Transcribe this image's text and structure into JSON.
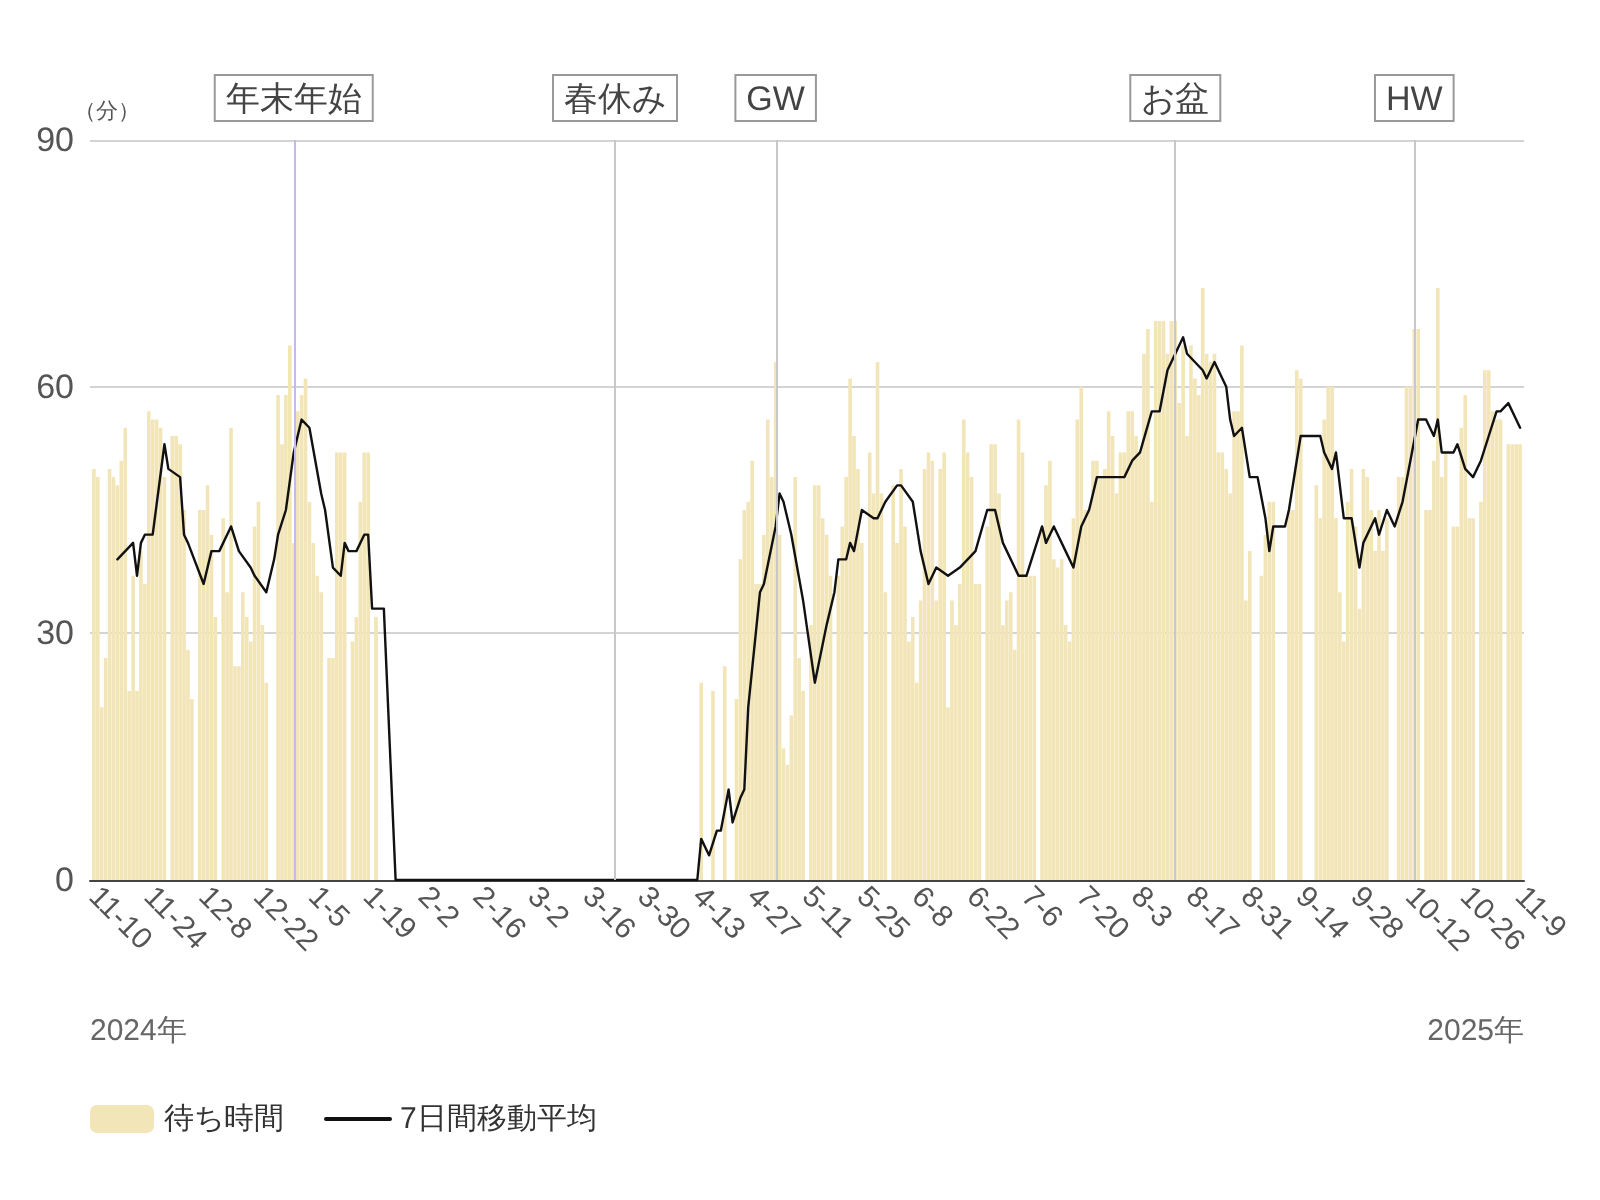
{
  "chart_data": {
    "type": "bar",
    "ylabel": "（分）",
    "annotations": [
      "2024年",
      "2025年"
    ],
    "xlim": [
      "2024-11-09",
      "2025-11-10"
    ],
    "xticks": [
      {
        "value": "2024-11-10",
        "label": "11-10"
      },
      {
        "value": "2024-11-24",
        "label": "11-24"
      },
      {
        "value": "2024-12-08",
        "label": "12-8"
      },
      {
        "value": "2024-12-22",
        "label": "12-22"
      },
      {
        "value": "2025-01-05",
        "label": "1-5"
      },
      {
        "value": "2025-01-19",
        "label": "1-19"
      },
      {
        "value": "2025-02-02",
        "label": "2-2"
      },
      {
        "value": "2025-02-16",
        "label": "2-16"
      },
      {
        "value": "2025-03-02",
        "label": "3-2"
      },
      {
        "value": "2025-03-16",
        "label": "3-16"
      },
      {
        "value": "2025-03-30",
        "label": "3-30"
      },
      {
        "value": "2025-04-13",
        "label": "4-13"
      },
      {
        "value": "2025-04-27",
        "label": "4-27"
      },
      {
        "value": "2025-05-11",
        "label": "5-11"
      },
      {
        "value": "2025-05-25",
        "label": "5-25"
      },
      {
        "value": "2025-06-08",
        "label": "6-8"
      },
      {
        "value": "2025-06-22",
        "label": "6-22"
      },
      {
        "value": "2025-07-06",
        "label": "7-6"
      },
      {
        "value": "2025-07-20",
        "label": "7-20"
      },
      {
        "value": "2025-08-03",
        "label": "8-3"
      },
      {
        "value": "2025-08-17",
        "label": "8-17"
      },
      {
        "value": "2025-08-31",
        "label": "8-31"
      },
      {
        "value": "2025-09-14",
        "label": "9-14"
      },
      {
        "value": "2025-09-28",
        "label": "9-28"
      },
      {
        "value": "2025-10-12",
        "label": "10-12"
      },
      {
        "value": "2025-10-26",
        "label": "10-26"
      },
      {
        "value": "2025-11-09",
        "label": "11-9"
      }
    ],
    "ylim": [
      0,
      90
    ],
    "yticks": [
      0,
      30,
      60,
      90
    ],
    "grid": "y",
    "legend": "bottom left",
    "marker": "none",
    "ref_lines": [
      {
        "axis": "x",
        "value": "2024-12-31",
        "label": "年末年始",
        "color": "#c4b8ee"
      },
      {
        "axis": "x",
        "value": "2025-03-23",
        "label": "春休み",
        "color": "#c8c8c8"
      },
      {
        "axis": "x",
        "value": "2025-05-03",
        "label": "GW",
        "color": "#c8c8c8"
      },
      {
        "axis": "x",
        "value": "2025-08-13",
        "label": "お盆",
        "color": "#c8c8c8"
      },
      {
        "axis": "x",
        "value": "2025-10-13",
        "label": "HW",
        "color": "#c8c8c8"
      }
    ],
    "series": [
      {
        "name": "待ち時間",
        "color": "#f2e5b8",
        "x": [
          "2024-11-10",
          "2024-11-11",
          "2024-11-12",
          "2024-11-13",
          "2024-11-14",
          "2024-11-15",
          "2024-11-16",
          "2024-11-17",
          "2024-11-18",
          "2024-11-19",
          "2024-11-20",
          "2024-11-21",
          "2024-11-22",
          "2024-11-23",
          "2024-11-24",
          "2024-11-25",
          "2024-11-26",
          "2024-11-27",
          "2024-11-28",
          "2024-11-30",
          "2024-12-01",
          "2024-12-02",
          "2024-12-03",
          "2024-12-04",
          "2024-12-05",
          "2024-12-07",
          "2024-12-08",
          "2024-12-09",
          "2024-12-10",
          "2024-12-11",
          "2024-12-13",
          "2024-12-14",
          "2024-12-15",
          "2024-12-16",
          "2024-12-17",
          "2024-12-18",
          "2024-12-19",
          "2024-12-20",
          "2024-12-21",
          "2024-12-22",
          "2024-12-23",
          "2024-12-24",
          "2024-12-27",
          "2024-12-28",
          "2024-12-29",
          "2024-12-30",
          "2024-12-31",
          "2025-01-01",
          "2025-01-02",
          "2025-01-03",
          "2025-01-04",
          "2025-01-05",
          "2025-01-06",
          "2025-01-07",
          "2025-01-09",
          "2025-01-10",
          "2025-01-11",
          "2025-01-12",
          "2025-01-13",
          "2025-01-15",
          "2025-01-16",
          "2025-01-17",
          "2025-01-18",
          "2025-01-19",
          "2025-01-21",
          "2025-04-14",
          "2025-04-17",
          "2025-04-20",
          "2025-04-23",
          "2025-04-24",
          "2025-04-25",
          "2025-04-26",
          "2025-04-27",
          "2025-04-28",
          "2025-04-29",
          "2025-04-30",
          "2025-05-01",
          "2025-05-02",
          "2025-05-03",
          "2025-05-04",
          "2025-05-05",
          "2025-05-06",
          "2025-05-07",
          "2025-05-08",
          "2025-05-09",
          "2025-05-10",
          "2025-05-12",
          "2025-05-13",
          "2025-05-14",
          "2025-05-15",
          "2025-05-16",
          "2025-05-17",
          "2025-05-19",
          "2025-05-20",
          "2025-05-21",
          "2025-05-22",
          "2025-05-23",
          "2025-05-24",
          "2025-05-25",
          "2025-05-27",
          "2025-05-28",
          "2025-05-29",
          "2025-05-30",
          "2025-05-31",
          "2025-06-02",
          "2025-06-03",
          "2025-06-04",
          "2025-06-05",
          "2025-06-06",
          "2025-06-07",
          "2025-06-08",
          "2025-06-09",
          "2025-06-10",
          "2025-06-11",
          "2025-06-12",
          "2025-06-13",
          "2025-06-14",
          "2025-06-15",
          "2025-06-16",
          "2025-06-17",
          "2025-06-18",
          "2025-06-19",
          "2025-06-20",
          "2025-06-21",
          "2025-06-22",
          "2025-06-23",
          "2025-06-24",
          "2025-06-26",
          "2025-06-27",
          "2025-06-28",
          "2025-06-29",
          "2025-06-30",
          "2025-07-01",
          "2025-07-02",
          "2025-07-03",
          "2025-07-04",
          "2025-07-05",
          "2025-07-06",
          "2025-07-07",
          "2025-07-08",
          "2025-07-10",
          "2025-07-11",
          "2025-07-12",
          "2025-07-13",
          "2025-07-14",
          "2025-07-15",
          "2025-07-16",
          "2025-07-17",
          "2025-07-18",
          "2025-07-19",
          "2025-07-20",
          "2025-07-21",
          "2025-07-22",
          "2025-07-23",
          "2025-07-24",
          "2025-07-25",
          "2025-07-26",
          "2025-07-27",
          "2025-07-28",
          "2025-07-29",
          "2025-07-30",
          "2025-07-31",
          "2025-08-01",
          "2025-08-02",
          "2025-08-03",
          "2025-08-04",
          "2025-08-05",
          "2025-08-06",
          "2025-08-07",
          "2025-08-08",
          "2025-08-09",
          "2025-08-10",
          "2025-08-11",
          "2025-08-12",
          "2025-08-13",
          "2025-08-14",
          "2025-08-15",
          "2025-08-16",
          "2025-08-17",
          "2025-08-18",
          "2025-08-19",
          "2025-08-20",
          "2025-08-21",
          "2025-08-22",
          "2025-08-23",
          "2025-08-24",
          "2025-08-25",
          "2025-08-26",
          "2025-08-27",
          "2025-08-28",
          "2025-08-29",
          "2025-08-30",
          "2025-08-31",
          "2025-09-01",
          "2025-09-04",
          "2025-09-05",
          "2025-09-06",
          "2025-09-07",
          "2025-09-11",
          "2025-09-12",
          "2025-09-13",
          "2025-09-14",
          "2025-09-18",
          "2025-09-19",
          "2025-09-20",
          "2025-09-21",
          "2025-09-22",
          "2025-09-23",
          "2025-09-24",
          "2025-09-25",
          "2025-09-26",
          "2025-09-27",
          "2025-09-28",
          "2025-09-29",
          "2025-09-30",
          "2025-10-01",
          "2025-10-02",
          "2025-10-03",
          "2025-10-04",
          "2025-10-05",
          "2025-10-06",
          "2025-10-09",
          "2025-10-10",
          "2025-10-11",
          "2025-10-12",
          "2025-10-13",
          "2025-10-14",
          "2025-10-16",
          "2025-10-17",
          "2025-10-18",
          "2025-10-19",
          "2025-10-20",
          "2025-10-21",
          "2025-10-23",
          "2025-10-24",
          "2025-10-25",
          "2025-10-26",
          "2025-10-27",
          "2025-10-28",
          "2025-10-30",
          "2025-10-31",
          "2025-11-01",
          "2025-11-02",
          "2025-11-03",
          "2025-11-04",
          "2025-11-06",
          "2025-11-07",
          "2025-11-08",
          "2025-11-09"
        ],
        "values": [
          50,
          49,
          21,
          27,
          50,
          49,
          48,
          51,
          55,
          23,
          37,
          23,
          40,
          36,
          57,
          56,
          56,
          55,
          49,
          54,
          54,
          53,
          45,
          28,
          22,
          45,
          45,
          48,
          42,
          32,
          44,
          35,
          55,
          26,
          26,
          35,
          32,
          29,
          43,
          46,
          31,
          24,
          59,
          53,
          59,
          65,
          41,
          57,
          59,
          61,
          46,
          41,
          37,
          35,
          27,
          27,
          52,
          52,
          52,
          29,
          32,
          46,
          52,
          52,
          32,
          24,
          23,
          26,
          22,
          39,
          45,
          46,
          51,
          36,
          36,
          42,
          56,
          49,
          63,
          42,
          16,
          14,
          20,
          49,
          27,
          23,
          31,
          48,
          48,
          44,
          42,
          37,
          37,
          43,
          49,
          61,
          54,
          50,
          41,
          52,
          47,
          63,
          47,
          35,
          48,
          41,
          50,
          43,
          29,
          32,
          24,
          34,
          50,
          52,
          51,
          34,
          50,
          52,
          21,
          34,
          31,
          36,
          56,
          52,
          49,
          36,
          36,
          43,
          53,
          53,
          47,
          31,
          34,
          35,
          28,
          56,
          52,
          37,
          37,
          37,
          43,
          48,
          51,
          39,
          38,
          39,
          31,
          29,
          44,
          56,
          60,
          45,
          45,
          51,
          51,
          49,
          50,
          57,
          54,
          47,
          52,
          52,
          57,
          57,
          54,
          52,
          64,
          67,
          46,
          68,
          68,
          68,
          64,
          68,
          68,
          58,
          65,
          54,
          65,
          61,
          59,
          72,
          64,
          63,
          64,
          52,
          52,
          50,
          47,
          57,
          57,
          65,
          34,
          40,
          37,
          42,
          46,
          46,
          45,
          45,
          62,
          61,
          48,
          44,
          56,
          60,
          60,
          44,
          35,
          29,
          46,
          50,
          43,
          33,
          50,
          49,
          45,
          40,
          45,
          40,
          44,
          49,
          49,
          60,
          60,
          67,
          67,
          45,
          45,
          51,
          72,
          49,
          52,
          43,
          43,
          55,
          59,
          44,
          44,
          46,
          62,
          62,
          57,
          56,
          56,
          53,
          53,
          53,
          53
        ]
      },
      {
        "type": "line",
        "name": "7日間移動平均",
        "color": "#111111",
        "x": [
          "2024-11-16",
          "2024-11-18",
          "2024-11-20",
          "2024-11-21",
          "2024-11-22",
          "2024-11-23",
          "2024-11-25",
          "2024-11-28",
          "2024-11-29",
          "2024-12-02",
          "2024-12-03",
          "2024-12-04",
          "2024-12-08",
          "2024-12-10",
          "2024-12-12",
          "2024-12-15",
          "2024-12-17",
          "2024-12-20",
          "2024-12-21",
          "2024-12-24",
          "2024-12-26",
          "2024-12-27",
          "2024-12-29",
          "2024-12-31",
          "2025-01-02",
          "2025-01-04",
          "2025-01-07",
          "2025-01-08",
          "2025-01-10",
          "2025-01-12",
          "2025-01-13",
          "2025-01-14",
          "2025-01-16",
          "2025-01-18",
          "2025-01-19",
          "2025-01-20",
          "2025-01-23",
          "2025-01-26",
          "2025-04-13",
          "2025-04-14",
          "2025-04-16",
          "2025-04-18",
          "2025-04-19",
          "2025-04-21",
          "2025-04-22",
          "2025-04-24",
          "2025-04-25",
          "2025-04-26",
          "2025-04-29",
          "2025-04-30",
          "2025-05-03",
          "2025-05-04",
          "2025-05-05",
          "2025-05-07",
          "2025-05-10",
          "2025-05-13",
          "2025-05-16",
          "2025-05-18",
          "2025-05-19",
          "2025-05-21",
          "2025-05-22",
          "2025-05-23",
          "2025-05-25",
          "2025-05-28",
          "2025-05-29",
          "2025-05-31",
          "2025-06-03",
          "2025-06-04",
          "2025-06-07",
          "2025-06-09",
          "2025-06-11",
          "2025-06-13",
          "2025-06-16",
          "2025-06-19",
          "2025-06-21",
          "2025-06-23",
          "2025-06-26",
          "2025-06-28",
          "2025-06-30",
          "2025-07-04",
          "2025-07-06",
          "2025-07-08",
          "2025-07-10",
          "2025-07-11",
          "2025-07-13",
          "2025-07-16",
          "2025-07-18",
          "2025-07-20",
          "2025-07-22",
          "2025-07-24",
          "2025-07-27",
          "2025-07-29",
          "2025-07-31",
          "2025-08-02",
          "2025-08-04",
          "2025-08-07",
          "2025-08-09",
          "2025-08-11",
          "2025-08-13",
          "2025-08-15",
          "2025-08-16",
          "2025-08-18",
          "2025-08-20",
          "2025-08-21",
          "2025-08-23",
          "2025-08-26",
          "2025-08-27",
          "2025-08-28",
          "2025-08-30",
          "2025-09-01",
          "2025-09-03",
          "2025-09-05",
          "2025-09-06",
          "2025-09-07",
          "2025-09-10",
          "2025-09-11",
          "2025-09-14",
          "2025-09-19",
          "2025-09-20",
          "2025-09-22",
          "2025-09-23",
          "2025-09-25",
          "2025-09-27",
          "2025-09-29",
          "2025-09-30",
          "2025-10-03",
          "2025-10-04",
          "2025-10-06",
          "2025-10-08",
          "2025-10-10",
          "2025-10-12",
          "2025-10-14",
          "2025-10-16",
          "2025-10-18",
          "2025-10-19",
          "2025-10-20",
          "2025-10-23",
          "2025-10-24",
          "2025-10-26",
          "2025-10-28",
          "2025-10-30",
          "2025-11-01",
          "2025-11-03",
          "2025-11-04",
          "2025-11-06",
          "2025-11-08",
          "2025-11-09"
        ],
        "values": [
          39,
          40,
          41,
          37,
          41,
          42,
          42,
          53,
          50,
          49,
          42,
          41,
          36,
          40,
          40,
          43,
          40,
          38,
          37,
          35,
          39,
          42,
          45,
          52,
          56,
          55,
          47,
          45,
          38,
          37,
          41,
          40,
          40,
          42,
          42,
          33,
          33,
          0,
          0,
          5,
          3,
          6,
          6,
          11,
          7,
          10,
          11,
          21,
          35,
          36,
          43,
          47,
          46,
          42,
          34,
          24,
          31,
          35,
          39,
          39,
          41,
          40,
          45,
          44,
          44,
          46,
          48,
          48,
          46,
          40,
          36,
          38,
          37,
          38,
          39,
          40,
          45,
          45,
          41,
          37,
          37,
          40,
          43,
          41,
          43,
          40,
          38,
          43,
          45,
          49,
          49,
          49,
          49,
          51,
          52,
          57,
          57,
          62,
          64,
          66,
          64,
          63,
          62,
          61,
          63,
          60,
          56,
          54,
          55,
          49,
          49,
          44,
          40,
          43,
          43,
          45,
          54,
          54,
          52,
          50,
          52,
          44,
          44,
          38,
          41,
          44,
          42,
          45,
          43,
          46,
          51,
          56,
          56,
          54,
          56,
          52,
          52,
          53,
          50,
          49,
          51,
          54,
          57,
          57,
          58,
          56,
          55
        ]
      }
    ]
  }
}
